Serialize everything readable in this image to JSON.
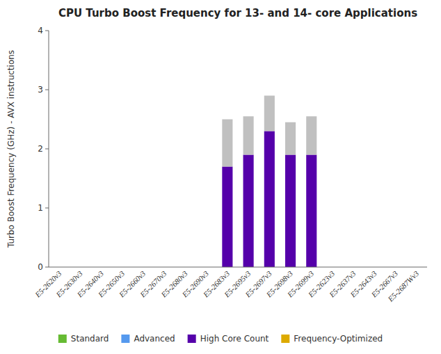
{
  "chart_data": {
    "type": "bar",
    "stacked": true,
    "title": "CPU Turbo Boost Frequency for 13- and 14- core Applications",
    "ylabel": "Turbo Boost Frequency (GHz) - AVX instructions",
    "ylim": [
      0,
      4
    ],
    "yticks": [
      0,
      1,
      2,
      3,
      4
    ],
    "grid": false,
    "legend": "bottom",
    "categories": [
      "E5-2620v3",
      "E5-2630v3",
      "E5-2640v3",
      "E5-2650v3",
      "E5-2660v3",
      "E5-2670v3",
      "E5-2680v3",
      "E5-2690v3",
      "E5-2683v3",
      "E5-2695v3",
      "E5-2697v3",
      "E5-2698v3",
      "E5-2699v3",
      "E5-2623v3",
      "E5-2637v3",
      "E5-2643v3",
      "E5-2667v3",
      "E5-2687Wv3"
    ],
    "series": [
      {
        "color": "#5500aa",
        "values": [
          0,
          0,
          0,
          0,
          0,
          0,
          0,
          0,
          1.7,
          1.9,
          2.3,
          1.9,
          1.9,
          0,
          0,
          0,
          0,
          0
        ]
      },
      {
        "color": "#c0c0c0",
        "values": [
          0,
          0,
          0,
          0,
          0,
          0,
          0,
          0,
          0.8,
          0.65,
          0.6,
          0.55,
          0.65,
          0,
          0,
          0,
          0,
          0
        ]
      }
    ],
    "legend_entries": [
      {
        "name": "Standard",
        "color": "#66bb33"
      },
      {
        "name": "Advanced",
        "color": "#5599ee"
      },
      {
        "name": "High Core Count",
        "color": "#5500aa"
      },
      {
        "name": "Frequency-Optimized",
        "color": "#ddaa00"
      }
    ]
  }
}
